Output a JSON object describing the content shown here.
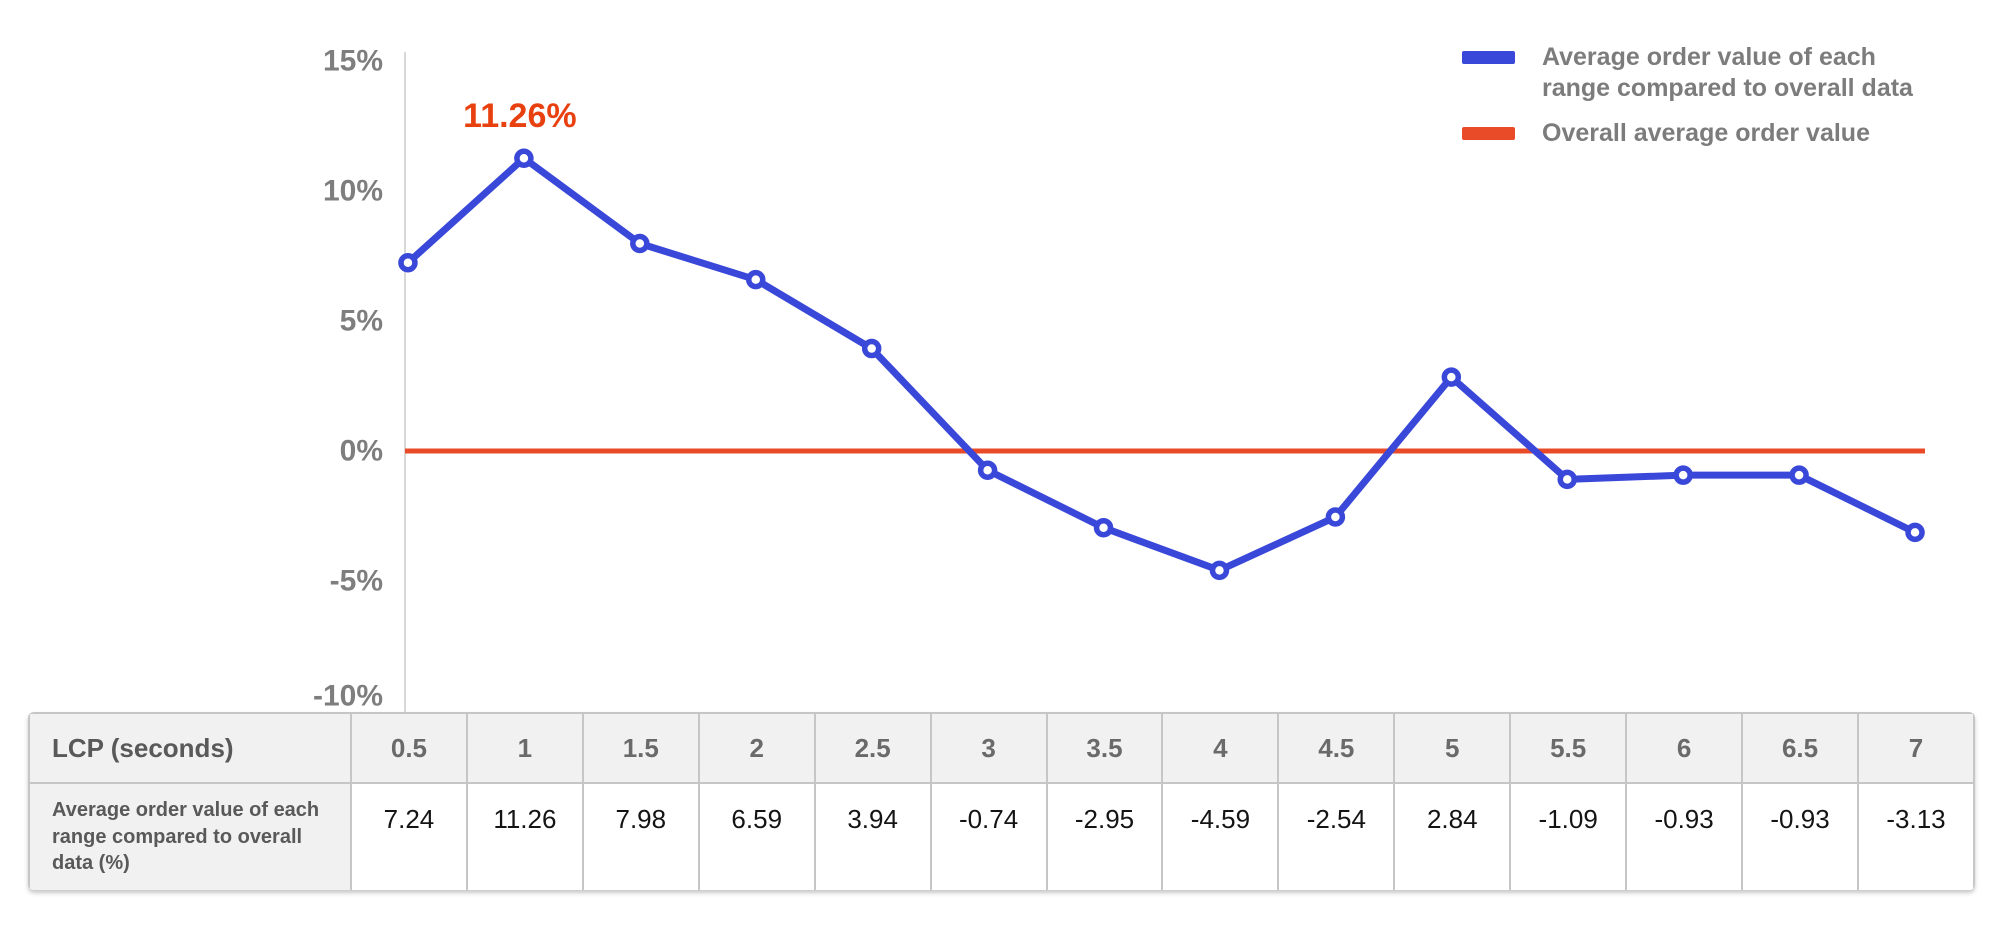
{
  "colors": {
    "series_line": "#3a48da",
    "baseline": "#e94b28",
    "annotation": "#e8400f",
    "axis_text": "#7e7e7e"
  },
  "legend": {
    "items": [
      {
        "lines": [
          "Average order value of each",
          "range compared to overall data"
        ],
        "color_key": "series_line"
      },
      {
        "lines": [
          "Overall average order value"
        ],
        "color_key": "baseline"
      }
    ]
  },
  "chart_data": {
    "type": "line",
    "x": [
      0.5,
      1,
      1.5,
      2,
      2.5,
      3,
      3.5,
      4,
      4.5,
      5,
      5.5,
      6,
      6.5,
      7
    ],
    "series": [
      {
        "name": "Average order value of each range compared to overall data",
        "values": [
          7.24,
          11.26,
          7.98,
          6.59,
          3.94,
          -0.74,
          -2.95,
          -4.59,
          -2.54,
          2.84,
          -1.09,
          -0.93,
          -0.93,
          -3.13
        ]
      },
      {
        "name": "Overall average order value",
        "values": [
          0,
          0,
          0,
          0,
          0,
          0,
          0,
          0,
          0,
          0,
          0,
          0,
          0,
          0
        ]
      }
    ],
    "baseline_value": 0,
    "yticks": [
      15,
      10,
      5,
      0,
      -5,
      -10
    ],
    "ytick_suffix": "%",
    "ylim": [
      -10.5,
      15.5
    ],
    "grid": false,
    "legend_position": "top-right",
    "xlabel": "LCP (seconds)",
    "ylabel": "",
    "annotation": {
      "text": "11.26%",
      "x_index": 1
    }
  },
  "table": {
    "row1_label": "LCP (seconds)",
    "columns": [
      "0.5",
      "1",
      "1.5",
      "2",
      "2.5",
      "3",
      "3.5",
      "4",
      "4.5",
      "5",
      "5.5",
      "6",
      "6.5",
      "7"
    ],
    "row2_label": "Average order value of each range compared to overall data (%)",
    "values": [
      "7.24",
      "11.26",
      "7.98",
      "6.59",
      "3.94",
      "-0.74",
      "-2.95",
      "-4.59",
      "-2.54",
      "2.84",
      "-1.09",
      "-0.93",
      "-0.93",
      "-3.13"
    ]
  }
}
